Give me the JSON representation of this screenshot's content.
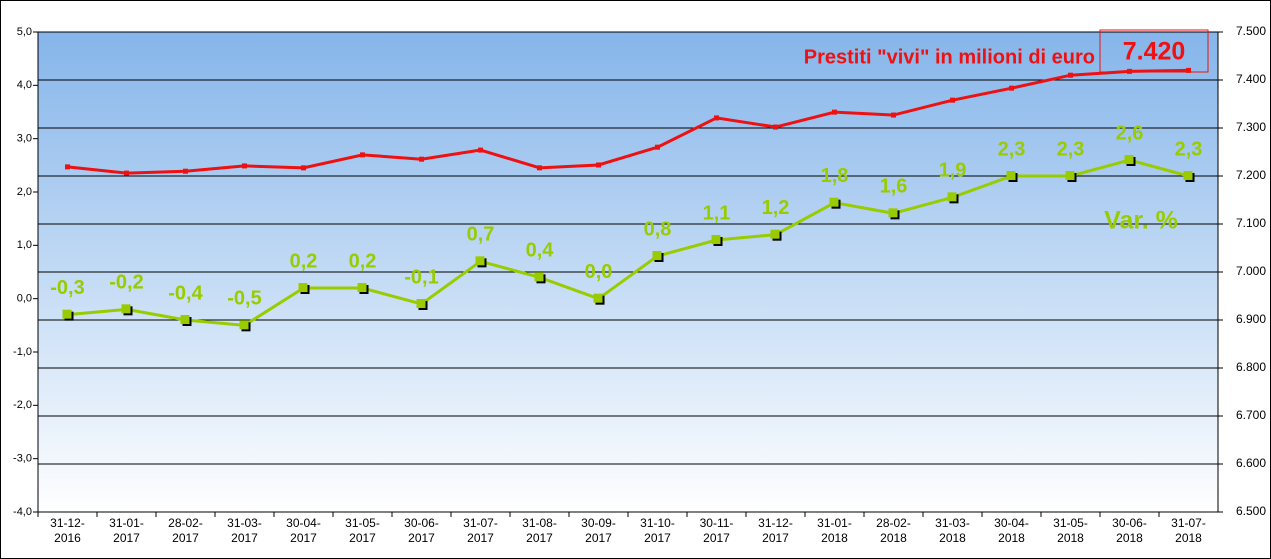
{
  "chart_data": {
    "type": "line",
    "categories": [
      "31-12-\n2016",
      "31-01-\n2017",
      "28-02-\n2017",
      "31-03-\n2017",
      "30-04-\n2017",
      "31-05-\n2017",
      "30-06-\n2017",
      "31-07-\n2017",
      "31-08-\n2017",
      "30-09-\n2017",
      "31-10-\n2017",
      "30-11-\n2017",
      "31-12-\n2017",
      "31-01-\n2018",
      "28-02-\n2018",
      "31-03-\n2018",
      "30-04-\n2018",
      "31-05-\n2018",
      "30-06-\n2018",
      "31-07-\n2018"
    ],
    "series": [
      {
        "color": "#99cc00",
        "values": [
          -0.3,
          -0.2,
          -0.4,
          -0.5,
          0.2,
          0.2,
          -0.1,
          0.7,
          0.4,
          0.0,
          0.8,
          1.1,
          1.2,
          1.8,
          1.6,
          1.9,
          2.3,
          2.3,
          2.6,
          2.3
        ],
        "value_labels": [
          "-0,3",
          "-0,2",
          "-0,4",
          "-0,5",
          "0,2",
          "0,2",
          "-0,1",
          "0,7",
          "0,4",
          "0,0",
          "0,8",
          "1,1",
          "1,2",
          "1,8",
          "1,6",
          "1,9",
          "2,3",
          "2,3",
          "2,6",
          "2,3"
        ]
      },
      {
        "color": "#ee1111",
        "axis": "y2",
        "values": [
          7219,
          7206,
          7210,
          7221,
          7217,
          7244,
          7235,
          7254,
          7217,
          7223,
          7260,
          7321,
          7302,
          7333,
          7327,
          7358,
          7383,
          7410,
          7418,
          7420
        ],
        "value_labels": [
          null,
          null,
          null,
          null,
          null,
          null,
          null,
          null,
          null,
          null,
          null,
          null,
          null,
          null,
          null,
          null,
          null,
          null,
          null,
          "7.420"
        ]
      }
    ],
    "annotations": [
      "Prestiti \"vivi\" in milioni di euro",
      "Var. %"
    ],
    "ylim": [
      -4,
      5
    ],
    "yticks": [
      {
        "value": -4,
        "label": "-4,0"
      },
      {
        "value": -3,
        "label": "-3,0"
      },
      {
        "value": -2,
        "label": "-2,0"
      },
      {
        "value": -1,
        "label": "-1,0"
      },
      {
        "value": 0,
        "label": "0,0"
      },
      {
        "value": 1,
        "label": "1,0"
      },
      {
        "value": 2,
        "label": "2,0"
      },
      {
        "value": 3,
        "label": "3,0"
      },
      {
        "value": 4,
        "label": "4,0"
      },
      {
        "value": 5,
        "label": "5,0"
      }
    ],
    "y2lim": [
      6500,
      7500
    ],
    "y2ticks": [
      {
        "value": 6500,
        "label": "6.500"
      },
      {
        "value": 6600,
        "label": "6.600"
      },
      {
        "value": 6700,
        "label": "6.700"
      },
      {
        "value": 6800,
        "label": "6.800"
      },
      {
        "value": 6900,
        "label": "6.900"
      },
      {
        "value": 7000,
        "label": "7.000"
      },
      {
        "value": 7100,
        "label": "7.100"
      },
      {
        "value": 7200,
        "label": "7.200"
      },
      {
        "value": 7300,
        "label": "7.300"
      },
      {
        "value": 7400,
        "label": "7.400"
      },
      {
        "value": 7500,
        "label": "7.500"
      }
    ],
    "grid": true
  }
}
